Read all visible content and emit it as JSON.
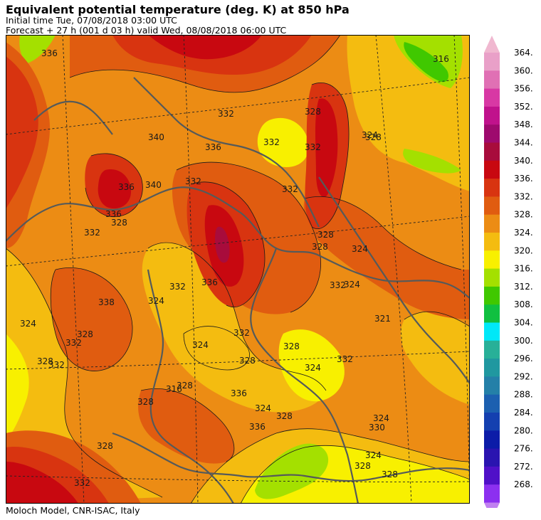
{
  "header": {
    "title": "Equivalent potential temperature (deg. K) at 850 hPa",
    "initial_time": "Initial time  Tue, 07/08/2018  03:00 UTC",
    "forecast": "Forecast  +  27 h  (001 d 03 h)  valid Wed, 08/08/2018 06:00 UTC"
  },
  "footer": {
    "credit": "Moloch Model, CNR-ISAC, Italy"
  },
  "legend": {
    "labels": [
      "364.",
      "360.",
      "356.",
      "352.",
      "348.",
      "344.",
      "340.",
      "336.",
      "332.",
      "328.",
      "324.",
      "320.",
      "316.",
      "312.",
      "308.",
      "304.",
      "300.",
      "296.",
      "292.",
      "288.",
      "284.",
      "280.",
      "276.",
      "272.",
      "268."
    ],
    "colors": [
      "#e9a0c8",
      "#e070b4",
      "#d838a4",
      "#c0128c",
      "#9e0a6e",
      "#a80c3c",
      "#c80810",
      "#d83410",
      "#e05c10",
      "#ec8c14",
      "#f4bc10",
      "#f8f000",
      "#a4e000",
      "#40c800",
      "#10c040",
      "#00e8f8",
      "#28b098",
      "#2098a0",
      "#2480a8",
      "#1c60b0",
      "#1440b0",
      "#0c1ca8",
      "#2a14b0",
      "#5010c8",
      "#8c30f0"
    ],
    "top_arrow_color": "#f0b8d0",
    "bottom_arrow_color": "#c080f0"
  },
  "map": {
    "contour_labels": [
      "316",
      "340",
      "336",
      "332",
      "328",
      "332",
      "332",
      "328",
      "324",
      "336",
      "332",
      "340",
      "336",
      "332",
      "328",
      "332",
      "328",
      "324",
      "328",
      "332",
      "324",
      "338",
      "332",
      "324",
      "336",
      "332",
      "328",
      "324",
      "328",
      "332",
      "328",
      "316",
      "328",
      "336",
      "324",
      "328",
      "330",
      "324",
      "324",
      "328",
      "328",
      "332",
      "328",
      "321",
      "336",
      "328",
      "324",
      "332",
      "336",
      "332",
      "328",
      "324"
    ]
  }
}
